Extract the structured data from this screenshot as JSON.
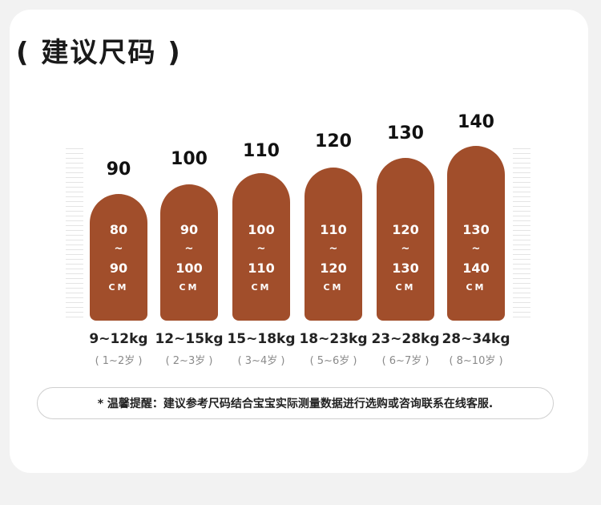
{
  "title": "( 建议尺码 )",
  "columns": [
    {
      "size": "90",
      "range_from": "80",
      "tilde": "~",
      "range_to": "90",
      "unit": "CM",
      "weight": "9~12kg",
      "age": "( 1~2岁 )"
    },
    {
      "size": "100",
      "range_from": "90",
      "tilde": "~",
      "range_to": "100",
      "unit": "CM",
      "weight": "12~15kg",
      "age": "( 2~3岁 )"
    },
    {
      "size": "110",
      "range_from": "100",
      "tilde": "~",
      "range_to": "110",
      "unit": "CM",
      "weight": "15~18kg",
      "age": "( 3~4岁 )"
    },
    {
      "size": "120",
      "range_from": "110",
      "tilde": "~",
      "range_to": "120",
      "unit": "CM",
      "weight": "18~23kg",
      "age": "( 5~6岁 )"
    },
    {
      "size": "130",
      "range_from": "120",
      "tilde": "~",
      "range_to": "130",
      "unit": "CM",
      "weight": "23~28kg",
      "age": "( 6~7岁 )"
    },
    {
      "size": "140",
      "range_from": "130",
      "tilde": "~",
      "range_to": "140",
      "unit": "CM",
      "weight": "28~34kg",
      "age": "( 8~10岁 )"
    }
  ],
  "tip": "* 温馨提醒：建议参考尺码结合宝宝实际测量数据进行选购或咨询联系在线客服.",
  "colors": {
    "pill": "#a14e2b",
    "background": "#f2f2f2",
    "card": "#ffffff"
  }
}
